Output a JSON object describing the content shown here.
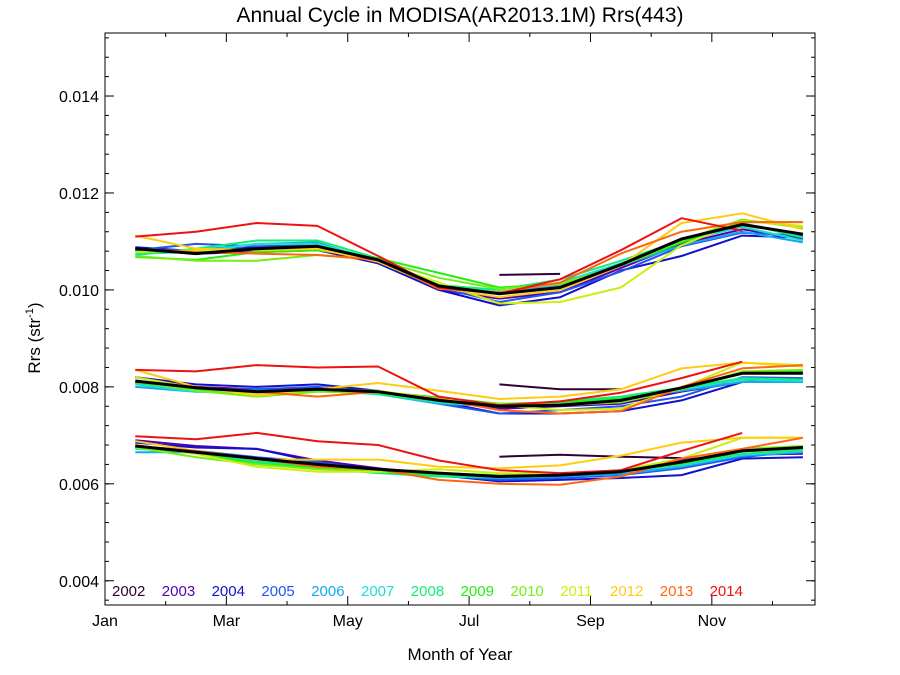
{
  "chart_data": {
    "type": "line",
    "title": "Annual Cycle in MODISA(AR2013.1M) Rrs(443)",
    "xlabel": "Month of Year",
    "ylabel": "Rrs (str",
    "ylabel_sup": "-1",
    "ylabel_end": ")",
    "xlim": [
      1,
      12.7
    ],
    "ylim": [
      0.0035,
      0.0153
    ],
    "x_ticks": [
      {
        "label": "Jan",
        "value": 1
      },
      {
        "label": "Mar",
        "value": 3
      },
      {
        "label": "May",
        "value": 5
      },
      {
        "label": "Jul",
        "value": 7
      },
      {
        "label": "Sep",
        "value": 9
      },
      {
        "label": "Nov",
        "value": 11
      }
    ],
    "y_ticks": [
      {
        "label": "0.004",
        "value": 0.004
      },
      {
        "label": "0.006",
        "value": 0.006
      },
      {
        "label": "0.008",
        "value": 0.008
      },
      {
        "label": "0.010",
        "value": 0.01
      },
      {
        "label": "0.012",
        "value": 0.012
      },
      {
        "label": "0.014",
        "value": 0.014
      }
    ],
    "x": [
      1.5,
      2.5,
      3.5,
      4.5,
      5.5,
      6.5,
      7.5,
      8.5,
      9.5,
      10.5,
      11.5,
      12.5
    ],
    "legend_position": "bottom-left",
    "series": [
      {
        "name": "2002",
        "color": "#330033",
        "band": "high",
        "values": [
          null,
          null,
          null,
          null,
          null,
          null,
          0.01031,
          0.01033,
          null,
          null,
          null,
          null
        ]
      },
      {
        "name": "2002",
        "color": "#330033",
        "band": "mid",
        "values": [
          null,
          null,
          null,
          null,
          null,
          null,
          0.00805,
          0.00795,
          0.00795,
          null,
          null,
          null
        ]
      },
      {
        "name": "2002",
        "color": "#330033",
        "band": "low",
        "values": [
          null,
          null,
          null,
          null,
          null,
          null,
          0.00656,
          0.0066,
          0.00656,
          0.00653,
          null,
          null
        ]
      },
      {
        "name": "2003",
        "color": "#5500aa",
        "band": "high",
        "values": [
          0.01086,
          0.01075,
          0.01078,
          0.01082,
          0.01055,
          0.01,
          0.00982,
          0.00995,
          0.01045,
          0.01095,
          0.01125,
          0.01105
        ]
      },
      {
        "name": "2003",
        "color": "#5500aa",
        "band": "mid",
        "values": [
          0.0082,
          0.008,
          0.00795,
          0.00798,
          0.0079,
          0.00775,
          0.00755,
          0.0076,
          0.00765,
          0.0079,
          0.0081,
          0.00815
        ]
      },
      {
        "name": "2003",
        "color": "#5500aa",
        "band": "low",
        "values": [
          0.0069,
          0.00678,
          0.00672,
          0.00648,
          0.00632,
          0.0062,
          0.00612,
          0.00618,
          0.00628,
          0.0065,
          0.0066,
          0.00662
        ]
      },
      {
        "name": "2004",
        "color": "#1111cc",
        "band": "high",
        "values": [
          0.01088,
          0.0108,
          0.01088,
          0.01085,
          0.01055,
          0.01,
          0.00968,
          0.00985,
          0.0104,
          0.0107,
          0.01112,
          0.01108
        ]
      },
      {
        "name": "2004",
        "color": "#1111cc",
        "band": "mid",
        "values": [
          0.0082,
          0.00805,
          0.008,
          0.00805,
          0.00792,
          0.0077,
          0.00745,
          0.00745,
          0.0075,
          0.00772,
          0.0081,
          0.00815
        ]
      },
      {
        "name": "2004",
        "color": "#1111cc",
        "band": "low",
        "values": [
          0.00685,
          0.00675,
          0.00672,
          0.00645,
          0.0063,
          0.00618,
          0.00605,
          0.00608,
          0.00612,
          0.00618,
          0.00652,
          0.00655
        ]
      },
      {
        "name": "2005",
        "color": "#2255ee",
        "band": "high",
        "values": [
          0.01082,
          0.01095,
          0.0109,
          0.01092,
          0.01058,
          0.01005,
          0.00975,
          0.00995,
          0.01038,
          0.0109,
          0.01118,
          0.01112
        ]
      },
      {
        "name": "2005",
        "color": "#2255ee",
        "band": "mid",
        "values": [
          0.0081,
          0.00795,
          0.00795,
          0.008,
          0.0079,
          0.00765,
          0.00745,
          0.00752,
          0.0076,
          0.0078,
          0.0082,
          0.00818
        ]
      },
      {
        "name": "2005",
        "color": "#2255ee",
        "band": "low",
        "values": [
          0.00678,
          0.00668,
          0.00655,
          0.00645,
          0.00628,
          0.00618,
          0.00608,
          0.00612,
          0.00618,
          0.00632,
          0.00655,
          0.00668
        ]
      },
      {
        "name": "2006",
        "color": "#11aaee",
        "band": "high",
        "values": [
          0.0108,
          0.01082,
          0.01095,
          0.01098,
          0.01058,
          0.01005,
          0.00995,
          0.01008,
          0.0105,
          0.01092,
          0.0112,
          0.01098
        ]
      },
      {
        "name": "2006",
        "color": "#11aaee",
        "band": "mid",
        "values": [
          0.008,
          0.0079,
          0.00792,
          0.00795,
          0.00785,
          0.00765,
          0.0076,
          0.00765,
          0.00775,
          0.00792,
          0.0081,
          0.0081
        ]
      },
      {
        "name": "2006",
        "color": "#11aaee",
        "band": "low",
        "values": [
          0.00665,
          0.00665,
          0.00648,
          0.00638,
          0.00628,
          0.00615,
          0.00612,
          0.00615,
          0.0062,
          0.00635,
          0.00658,
          0.00665
        ]
      },
      {
        "name": "2007",
        "color": "#22ddcc",
        "band": "high",
        "values": [
          0.01075,
          0.01078,
          0.01095,
          0.01095,
          0.01062,
          0.01008,
          0.00995,
          0.01015,
          0.01055,
          0.011,
          0.0113,
          0.01102
        ]
      },
      {
        "name": "2007",
        "color": "#22ddcc",
        "band": "mid",
        "values": [
          0.00805,
          0.0079,
          0.00788,
          0.00792,
          0.00785,
          0.00768,
          0.0076,
          0.00768,
          0.00778,
          0.00795,
          0.00815,
          0.00812
        ]
      },
      {
        "name": "2007",
        "color": "#22ddcc",
        "band": "low",
        "values": [
          0.00672,
          0.00665,
          0.00645,
          0.00635,
          0.00625,
          0.00618,
          0.00615,
          0.00618,
          0.00625,
          0.00638,
          0.0066,
          0.00668
        ]
      },
      {
        "name": "2008",
        "color": "#11ee77",
        "band": "high",
        "values": [
          0.01072,
          0.01085,
          0.01102,
          0.01102,
          0.01065,
          0.0101,
          0.01,
          0.01022,
          0.0106,
          0.01102,
          0.01138,
          0.01108
        ]
      },
      {
        "name": "2008",
        "color": "#11ee77",
        "band": "mid",
        "values": [
          0.00808,
          0.00795,
          0.0079,
          0.00795,
          0.00785,
          0.0077,
          0.00762,
          0.0077,
          0.0078,
          0.00798,
          0.00818,
          0.00815
        ]
      },
      {
        "name": "2008",
        "color": "#11ee77",
        "band": "low",
        "values": [
          0.00675,
          0.00665,
          0.00648,
          0.00632,
          0.00622,
          0.00615,
          0.00615,
          0.0062,
          0.00628,
          0.00642,
          0.00662,
          0.0067
        ]
      },
      {
        "name": "2009",
        "color": "#22ee11",
        "band": "high",
        "values": [
          0.01068,
          0.01062,
          0.01078,
          0.01082,
          0.01065,
          0.01035,
          0.01005,
          0.01012,
          0.0105,
          0.01098,
          0.0114,
          0.0114
        ]
      },
      {
        "name": "2009",
        "color": "#22ee11",
        "band": "mid",
        "values": [
          0.0081,
          0.00795,
          0.0079,
          0.00795,
          0.0079,
          0.00778,
          0.00765,
          0.00768,
          0.00775,
          0.00795,
          0.0083,
          0.00832
        ]
      },
      {
        "name": "2009",
        "color": "#22ee11",
        "band": "low",
        "values": [
          0.00678,
          0.00662,
          0.00642,
          0.00632,
          0.00625,
          0.0062,
          0.00618,
          0.0062,
          0.00625,
          0.00642,
          0.00668,
          0.00675
        ]
      },
      {
        "name": "2010",
        "color": "#77ee11",
        "band": "high",
        "values": [
          0.0107,
          0.0106,
          0.0106,
          0.01072,
          0.01062,
          0.01025,
          0.01002,
          0.01012,
          0.0105,
          0.01102,
          0.01145,
          0.01128
        ]
      },
      {
        "name": "2010",
        "color": "#77ee11",
        "band": "mid",
        "values": [
          0.00812,
          0.00792,
          0.0078,
          0.0079,
          0.00788,
          0.00775,
          0.00765,
          0.00762,
          0.00768,
          0.00795,
          0.00832,
          0.00835
        ]
      },
      {
        "name": "2010",
        "color": "#77ee11",
        "band": "low",
        "values": [
          0.00675,
          0.00655,
          0.0064,
          0.0063,
          0.00625,
          0.00622,
          0.00618,
          0.0062,
          0.00625,
          0.00645,
          0.00672,
          0.00678
        ]
      },
      {
        "name": "2011",
        "color": "#ccee11",
        "band": "high",
        "values": [
          0.01078,
          0.01082,
          0.01082,
          0.01085,
          0.01058,
          0.01015,
          0.00972,
          0.00975,
          0.01005,
          0.01092,
          0.01142,
          0.01132
        ]
      },
      {
        "name": "2011",
        "color": "#ccee11",
        "band": "mid",
        "values": [
          0.0082,
          0.00798,
          0.00785,
          0.00795,
          0.00792,
          0.00775,
          0.00762,
          0.00752,
          0.00755,
          0.00798,
          0.0085,
          0.00845
        ]
      },
      {
        "name": "2011",
        "color": "#ccee11",
        "band": "low",
        "values": [
          0.0068,
          0.00662,
          0.00635,
          0.00625,
          0.00625,
          0.0063,
          0.00622,
          0.0062,
          0.00628,
          0.00652,
          0.00695,
          0.00695
        ]
      },
      {
        "name": "2012",
        "color": "#ffcc11",
        "band": "high",
        "values": [
          0.01112,
          0.01085,
          0.01082,
          0.01085,
          0.01058,
          0.01005,
          0.00985,
          0.01,
          0.0105,
          0.01138,
          0.01158,
          0.01125
        ]
      },
      {
        "name": "2012",
        "color": "#ffcc11",
        "band": "mid",
        "values": [
          0.00835,
          0.008,
          0.00782,
          0.00795,
          0.00808,
          0.00792,
          0.00775,
          0.0078,
          0.00795,
          0.00838,
          0.0085,
          0.00842
        ]
      },
      {
        "name": "2012",
        "color": "#ffcc11",
        "band": "low",
        "values": [
          0.00688,
          0.00668,
          0.0065,
          0.0065,
          0.0065,
          0.00635,
          0.00632,
          0.00638,
          0.00658,
          0.00685,
          0.00695,
          0.00695
        ]
      },
      {
        "name": "2013",
        "color": "#ff6611",
        "band": "high",
        "values": [
          0.01085,
          0.01078,
          0.01075,
          0.01072,
          0.01062,
          0.01002,
          0.00995,
          0.01015,
          0.01075,
          0.0112,
          0.0114,
          0.0114
        ]
      },
      {
        "name": "2013",
        "color": "#ff6611",
        "band": "mid",
        "values": [
          0.0081,
          0.008,
          0.0079,
          0.0078,
          0.0079,
          0.00775,
          0.00752,
          0.00745,
          0.0075,
          0.008,
          0.00838,
          0.00845
        ]
      },
      {
        "name": "2013",
        "color": "#ff6611",
        "band": "low",
        "values": [
          0.00678,
          0.00668,
          0.00652,
          0.00635,
          0.0063,
          0.00608,
          0.006,
          0.00598,
          0.00615,
          0.00652,
          0.00672,
          0.00695
        ]
      },
      {
        "name": "2014",
        "color": "#ee1111",
        "band": "high",
        "values": [
          0.0111,
          0.0112,
          0.01138,
          0.01132,
          0.0107,
          0.01005,
          0.00992,
          0.01022,
          0.01082,
          0.01148,
          0.01122,
          null
        ]
      },
      {
        "name": "2014",
        "color": "#ee1111",
        "band": "mid",
        "values": [
          0.00835,
          0.00832,
          0.00845,
          0.0084,
          0.00842,
          0.0078,
          0.00762,
          0.0077,
          0.00788,
          0.00818,
          0.00852,
          null
        ]
      },
      {
        "name": "2014",
        "color": "#ee1111",
        "band": "low",
        "values": [
          0.00698,
          0.00692,
          0.00705,
          0.00688,
          0.0068,
          0.00648,
          0.00628,
          0.00622,
          0.00628,
          0.00668,
          0.00705,
          null
        ]
      },
      {
        "name": "",
        "color": "#000000",
        "band": "high",
        "mean": true,
        "values": [
          0.01085,
          0.01075,
          0.01085,
          0.0109,
          0.01062,
          0.01008,
          0.00992,
          0.01005,
          0.01052,
          0.01105,
          0.01135,
          0.01115
        ]
      },
      {
        "name": "",
        "color": "#000000",
        "band": "mid",
        "mean": true,
        "values": [
          0.00812,
          0.00798,
          0.0079,
          0.00795,
          0.0079,
          0.00772,
          0.0076,
          0.00762,
          0.00772,
          0.00798,
          0.00828,
          0.00828
        ]
      },
      {
        "name": "",
        "color": "#000000",
        "band": "low",
        "mean": true,
        "values": [
          0.00678,
          0.00665,
          0.00652,
          0.0064,
          0.0063,
          0.00622,
          0.00615,
          0.00618,
          0.00625,
          0.00645,
          0.00668,
          0.00675
        ]
      }
    ],
    "legend": [
      {
        "name": "2002",
        "color": "#330033"
      },
      {
        "name": "2003",
        "color": "#5500aa"
      },
      {
        "name": "2004",
        "color": "#1111cc"
      },
      {
        "name": "2005",
        "color": "#2255ee"
      },
      {
        "name": "2006",
        "color": "#11aaee"
      },
      {
        "name": "2007",
        "color": "#22ddcc"
      },
      {
        "name": "2008",
        "color": "#11ee77"
      },
      {
        "name": "2009",
        "color": "#22ee11"
      },
      {
        "name": "2010",
        "color": "#77ee11"
      },
      {
        "name": "2011",
        "color": "#ccee11"
      },
      {
        "name": "2012",
        "color": "#ffcc11"
      },
      {
        "name": "2013",
        "color": "#ff6611"
      },
      {
        "name": "2014",
        "color": "#ee1111"
      }
    ]
  }
}
